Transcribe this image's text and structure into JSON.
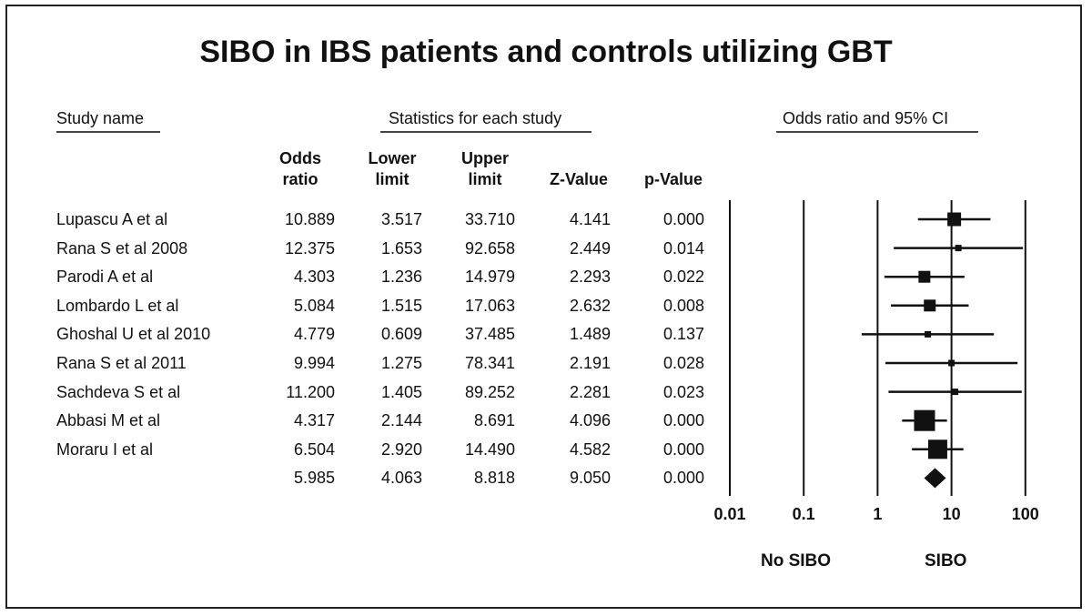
{
  "title": "SIBO in IBS patients and controls utilizing GBT",
  "headers": {
    "study_name": "Study name",
    "statistics": "Statistics for each study",
    "odds_ci": "Odds ratio and 95% CI"
  },
  "columns": {
    "odds_line1": "Odds",
    "odds_line2": "ratio",
    "lower_line1": "Lower",
    "lower_line2": "limit",
    "upper_line1": "Upper",
    "upper_line2": "limit",
    "z": "Z-Value",
    "p": "p-Value"
  },
  "footer": {
    "left": "No SIBO",
    "right": "SIBO"
  },
  "chart_data": {
    "type": "forest",
    "x_scale": "log",
    "xlim": [
      0.01,
      100
    ],
    "x_ticks": [
      "0.01",
      "0.1",
      "1",
      "10",
      "100"
    ],
    "tick_values": [
      0.01,
      0.1,
      1,
      10,
      100
    ],
    "studies": [
      {
        "name": "Lupascu A et al",
        "or": "10.889",
        "lower": "3.517",
        "upper": "33.710",
        "z": "4.141",
        "p": "0.000",
        "or_v": 10.889,
        "lo_v": 3.517,
        "up_v": 33.71,
        "weight": 3
      },
      {
        "name": "Rana S et al 2008",
        "or": "12.375",
        "lower": "1.653",
        "upper": "92.658",
        "z": "2.449",
        "p": "0.014",
        "or_v": 12.375,
        "lo_v": 1.653,
        "up_v": 92.658,
        "weight": 1
      },
      {
        "name": "Parodi A et al",
        "or": "4.303",
        "lower": "1.236",
        "upper": "14.979",
        "z": "2.293",
        "p": "0.022",
        "or_v": 4.303,
        "lo_v": 1.236,
        "up_v": 14.979,
        "weight": 2.5
      },
      {
        "name": "Lombardo L et al",
        "or": "5.084",
        "lower": "1.515",
        "upper": "17.063",
        "z": "2.632",
        "p": "0.008",
        "or_v": 5.084,
        "lo_v": 1.515,
        "up_v": 17.063,
        "weight": 2.5
      },
      {
        "name": "Ghoshal U et al 2010",
        "or": "4.779",
        "lower": "0.609",
        "upper": "37.485",
        "z": "1.489",
        "p": "0.137",
        "or_v": 4.779,
        "lo_v": 0.609,
        "up_v": 37.485,
        "weight": 1
      },
      {
        "name": "Rana S et al 2011",
        "or": "9.994",
        "lower": "1.275",
        "upper": "78.341",
        "z": "2.191",
        "p": "0.028",
        "or_v": 9.994,
        "lo_v": 1.275,
        "up_v": 78.341,
        "weight": 1
      },
      {
        "name": "Sachdeva S et al",
        "or": "11.200",
        "lower": "1.405",
        "upper": "89.252",
        "z": "2.281",
        "p": "0.023",
        "or_v": 11.2,
        "lo_v": 1.405,
        "up_v": 89.252,
        "weight": 1
      },
      {
        "name": "Abbasi M et al",
        "or": "4.317",
        "lower": "2.144",
        "upper": "8.691",
        "z": "4.096",
        "p": "0.000",
        "or_v": 4.317,
        "lo_v": 2.144,
        "up_v": 8.691,
        "weight": 5
      },
      {
        "name": "Moraru I et al",
        "or": "6.504",
        "lower": "2.920",
        "upper": "14.490",
        "z": "4.582",
        "p": "0.000",
        "or_v": 6.504,
        "lo_v": 2.92,
        "up_v": 14.49,
        "weight": 4.5
      }
    ],
    "summary": {
      "name": "",
      "or": "5.985",
      "lower": "4.063",
      "upper": "8.818",
      "z": "9.050",
      "p": "0.000",
      "or_v": 5.985,
      "lo_v": 4.063,
      "up_v": 8.818
    }
  }
}
